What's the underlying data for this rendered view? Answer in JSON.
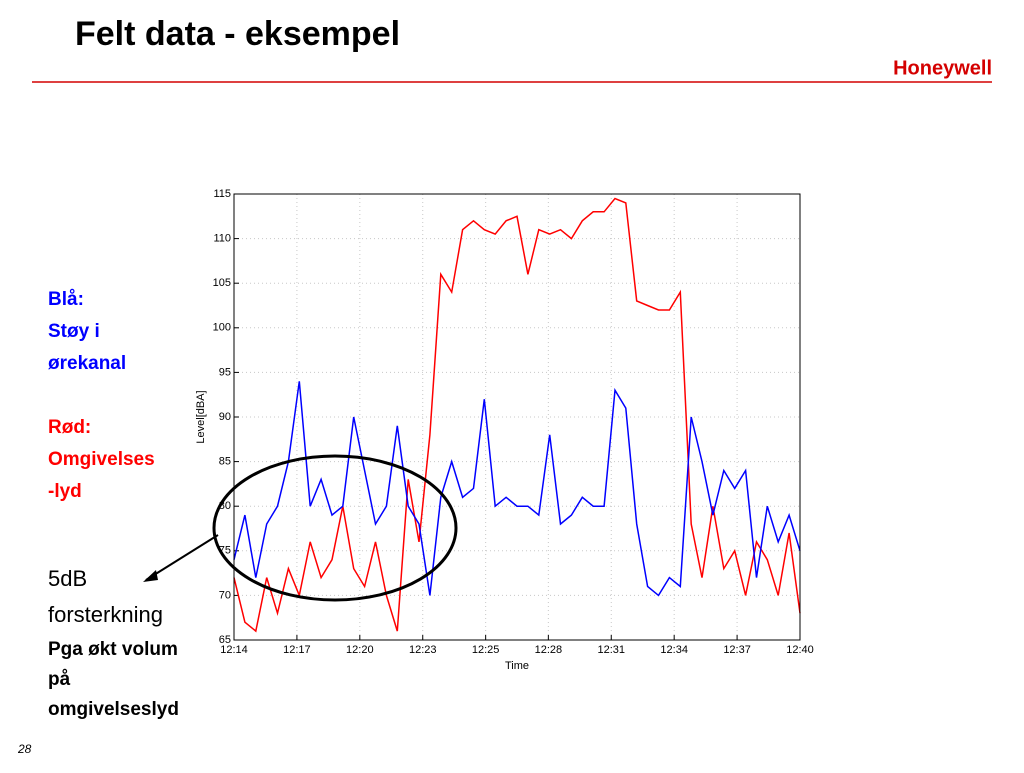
{
  "slide": {
    "title": "Felt data - eksempel",
    "logo": "Honeywell",
    "blue_note": [
      "Blå:",
      "Støy i",
      "ørekanal"
    ],
    "red_note": [
      "Rød:",
      "Omgivelses",
      "-lyd"
    ],
    "gain_note": [
      "5dB",
      "forsterkning"
    ],
    "reason_note": [
      "Pga økt volum",
      "på",
      "omgivelseslyd"
    ],
    "page_number": "28"
  },
  "chart_data": {
    "type": "line",
    "xlabel": "Time",
    "ylabel": "Level[dBA]",
    "grid": true,
    "xlim": [
      734,
      760
    ],
    "ylim": [
      65,
      115
    ],
    "xticks": [
      {
        "value": 734,
        "label": "12:14"
      },
      {
        "value": 736.89,
        "label": "12:17"
      },
      {
        "value": 739.78,
        "label": "12:20"
      },
      {
        "value": 742.67,
        "label": "12:23"
      },
      {
        "value": 745.56,
        "label": "12:25"
      },
      {
        "value": 748.44,
        "label": "12:28"
      },
      {
        "value": 751.33,
        "label": "12:31"
      },
      {
        "value": 754.22,
        "label": "12:34"
      },
      {
        "value": 757.11,
        "label": "12:37"
      },
      {
        "value": 760,
        "label": "12:40"
      }
    ],
    "yticks": [
      65,
      70,
      75,
      80,
      85,
      90,
      95,
      100,
      105,
      110,
      115
    ],
    "x": [
      734,
      734.5,
      735,
      735.5,
      736,
      736.5,
      737,
      737.5,
      738,
      738.5,
      739,
      739.5,
      740,
      740.5,
      741,
      741.5,
      742,
      742.5,
      743,
      743.5,
      744,
      744.5,
      745,
      745.5,
      746,
      746.5,
      747,
      747.5,
      748,
      748.5,
      749,
      749.5,
      750,
      750.5,
      751,
      751.5,
      752,
      752.5,
      753,
      753.5,
      754,
      754.5,
      755,
      755.5,
      756,
      756.5,
      757,
      757.5,
      758,
      758.5,
      759,
      759.5,
      760
    ],
    "series": [
      {
        "color": "#ff0000",
        "values": [
          72,
          67,
          66,
          72,
          68,
          73,
          70,
          76,
          72,
          74,
          80,
          73,
          71,
          76,
          70,
          66,
          83,
          76,
          88,
          106,
          104,
          111,
          112,
          111,
          110.5,
          112,
          112.5,
          106,
          111,
          110.5,
          111,
          110,
          112,
          113,
          113,
          114.5,
          114,
          103,
          102.5,
          102,
          102,
          104,
          78,
          72,
          80,
          73,
          75,
          70,
          76,
          74,
          70,
          77,
          68
        ]
      },
      {
        "color": "#0000ff",
        "values": [
          74,
          79,
          72,
          78,
          80,
          85,
          94,
          80,
          83,
          79,
          80,
          90,
          84,
          78,
          80,
          89,
          80,
          78,
          70,
          81,
          85,
          81,
          82,
          92,
          80,
          81,
          80,
          80,
          79,
          88,
          78,
          79,
          81,
          80,
          80,
          93,
          91,
          78,
          71,
          70,
          72,
          71,
          90,
          85,
          79,
          84,
          82,
          84,
          72,
          80,
          76,
          79,
          75
        ]
      }
    ]
  }
}
